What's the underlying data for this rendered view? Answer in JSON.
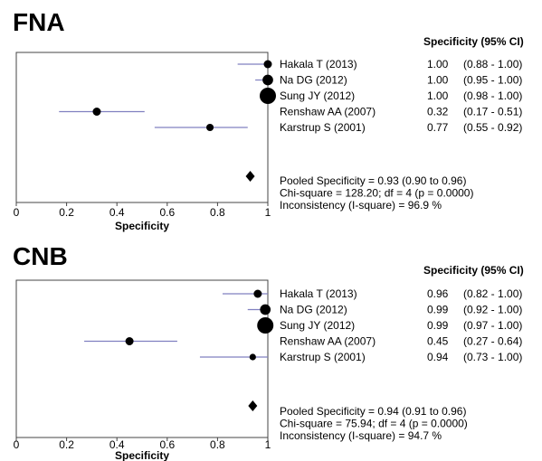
{
  "chart_data": [
    {
      "type": "forest",
      "title": "FNA",
      "column_header": "Specificity (95% CI)",
      "xlabel": "Specificity",
      "xlim": [
        0,
        1
      ],
      "x_ticks": [
        "0",
        "0.2",
        "0.4",
        "0.6",
        "0.8",
        "1"
      ],
      "studies": [
        {
          "name": "Hakala T (2013)",
          "est": 1.0,
          "lo": 0.88,
          "hi": 1.0,
          "est_label": "1.00",
          "ci_label": "(0.88 - 1.00)",
          "weight": 1.0
        },
        {
          "name": "Na DG (2012)",
          "est": 1.0,
          "lo": 0.95,
          "hi": 1.0,
          "est_label": "1.00",
          "ci_label": "(0.95 - 1.00)",
          "weight": 1.3
        },
        {
          "name": "Sung JY (2012)",
          "est": 1.0,
          "lo": 0.98,
          "hi": 1.0,
          "est_label": "1.00",
          "ci_label": "(0.98 - 1.00)",
          "weight": 2.0
        },
        {
          "name": "Renshaw AA (2007)",
          "est": 0.32,
          "lo": 0.17,
          "hi": 0.51,
          "est_label": "0.32",
          "ci_label": "(0.17 - 0.51)",
          "weight": 1.0
        },
        {
          "name": "Karstrup S (2001)",
          "est": 0.77,
          "lo": 0.55,
          "hi": 0.92,
          "est_label": "0.77",
          "ci_label": "(0.55 - 0.92)",
          "weight": 0.9
        }
      ],
      "pooled": {
        "est": 0.93,
        "lo": 0.9,
        "hi": 0.96
      },
      "stats": [
        "Pooled Specificity = 0.93 (0.90 to 0.96)",
        "Chi-square = 128.20; df =  4 (p = 0.0000)",
        "Inconsistency (I-square) = 96.9 %"
      ]
    },
    {
      "type": "forest",
      "title": "CNB",
      "column_header": "Specificity (95% CI)",
      "xlabel": "Specificity",
      "xlim": [
        0,
        1
      ],
      "x_ticks": [
        "0",
        "0.2",
        "0.4",
        "0.6",
        "0.8",
        "1"
      ],
      "studies": [
        {
          "name": "Hakala T (2013)",
          "est": 0.96,
          "lo": 0.82,
          "hi": 1.0,
          "est_label": "0.96",
          "ci_label": "(0.82 - 1.00)",
          "weight": 1.0
        },
        {
          "name": "Na DG (2012)",
          "est": 0.99,
          "lo": 0.92,
          "hi": 1.0,
          "est_label": "0.99",
          "ci_label": "(0.92 - 1.00)",
          "weight": 1.3
        },
        {
          "name": "Sung JY (2012)",
          "est": 0.99,
          "lo": 0.97,
          "hi": 1.0,
          "est_label": "0.99",
          "ci_label": "(0.97 - 1.00)",
          "weight": 2.0
        },
        {
          "name": "Renshaw AA (2007)",
          "est": 0.45,
          "lo": 0.27,
          "hi": 0.64,
          "est_label": "0.45",
          "ci_label": "(0.27 - 0.64)",
          "weight": 1.0
        },
        {
          "name": "Karstrup S (2001)",
          "est": 0.94,
          "lo": 0.73,
          "hi": 1.0,
          "est_label": "0.94",
          "ci_label": "(0.73 - 1.00)",
          "weight": 0.8
        }
      ],
      "pooled": {
        "est": 0.94,
        "lo": 0.91,
        "hi": 0.96
      },
      "stats": [
        "Pooled Specificity = 0.94 (0.91 to 0.96)",
        "Chi-square = 75.94; df =  4 (p = 0.0000)",
        "Inconsistency (I-square) = 94.7 %"
      ]
    }
  ],
  "colors": {
    "ci_line": "#8080c0",
    "marker": "#000000",
    "frame": "#444444"
  }
}
